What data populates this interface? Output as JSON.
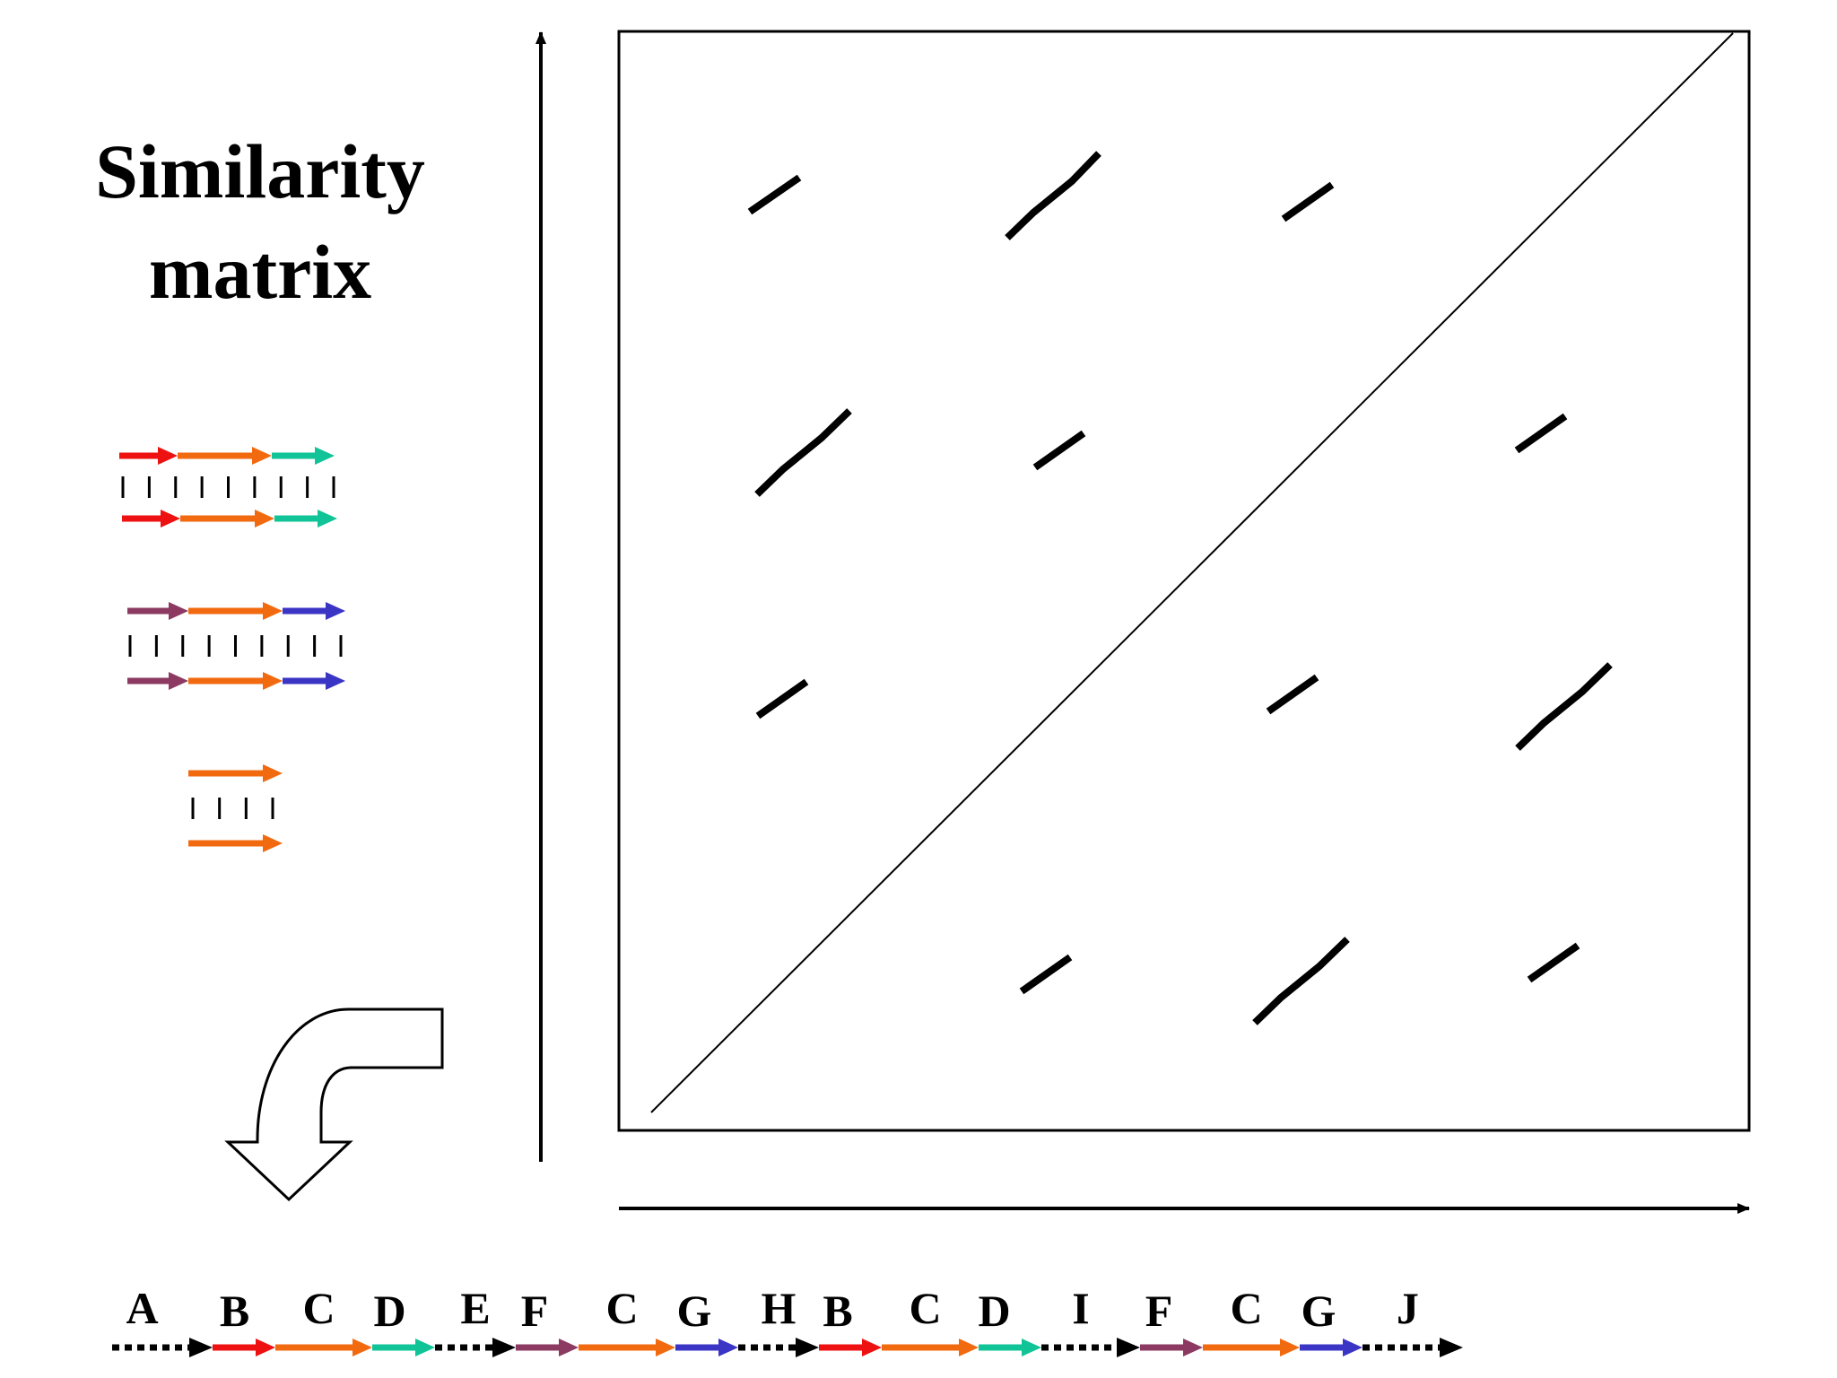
{
  "title": {
    "line1": "Similarity",
    "line2": "matrix"
  },
  "colors": {
    "B": "#ee1111",
    "C": "#f26a10",
    "D": "#11c497",
    "F": "#8c3a62",
    "G": "#3b35c6",
    "gap": "#000000"
  },
  "legend": [
    {
      "segments": [
        "B",
        "C",
        "D"
      ]
    },
    {
      "segments": [
        "F",
        "C",
        "G"
      ]
    },
    {
      "segments": [
        "C"
      ]
    }
  ],
  "sequence": [
    {
      "label": "A",
      "type": "gap"
    },
    {
      "label": "B",
      "type": "B"
    },
    {
      "label": "C",
      "type": "C"
    },
    {
      "label": "D",
      "type": "D"
    },
    {
      "label": "E",
      "type": "gap"
    },
    {
      "label": "F",
      "type": "F"
    },
    {
      "label": "C",
      "type": "C"
    },
    {
      "label": "G",
      "type": "G"
    },
    {
      "label": "H",
      "type": "gap"
    },
    {
      "label": "B",
      "type": "B"
    },
    {
      "label": "C",
      "type": "C"
    },
    {
      "label": "D",
      "type": "D"
    },
    {
      "label": "I",
      "type": "gap"
    },
    {
      "label": "F",
      "type": "F"
    },
    {
      "label": "C",
      "type": "C"
    },
    {
      "label": "G",
      "type": "G"
    },
    {
      "label": "J",
      "type": "gap"
    }
  ]
}
